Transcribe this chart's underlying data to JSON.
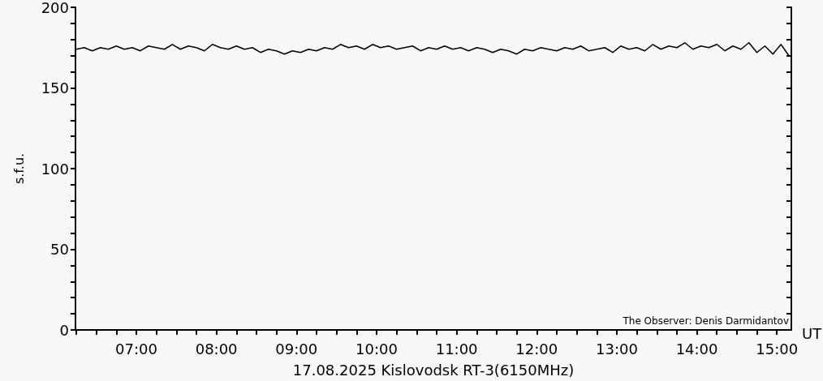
{
  "chart_data": {
    "type": "line",
    "xlabel": "17.08.2025 Kislovodsk RT-3(6150MHz)",
    "ylabel": "s.f.u.",
    "annotations": [
      "The Observer: Denis Darmidantov",
      "UT"
    ],
    "x": [
      6.25,
      6.35,
      6.45,
      6.55,
      6.65,
      6.75,
      6.85,
      6.95,
      7.05,
      7.15,
      7.25,
      7.35,
      7.45,
      7.55,
      7.65,
      7.75,
      7.85,
      7.95,
      8.05,
      8.15,
      8.25,
      8.35,
      8.45,
      8.55,
      8.65,
      8.75,
      8.85,
      8.95,
      9.05,
      9.15,
      9.25,
      9.35,
      9.45,
      9.55,
      9.65,
      9.75,
      9.85,
      9.95,
      10.05,
      10.15,
      10.25,
      10.35,
      10.45,
      10.55,
      10.65,
      10.75,
      10.85,
      10.95,
      11.05,
      11.15,
      11.25,
      11.35,
      11.45,
      11.55,
      11.65,
      11.75,
      11.85,
      11.95,
      12.05,
      12.15,
      12.25,
      12.35,
      12.45,
      12.55,
      12.65,
      12.75,
      12.85,
      12.95,
      13.05,
      13.15,
      13.25,
      13.35,
      13.45,
      13.55,
      13.65,
      13.75,
      13.85,
      13.95,
      14.05,
      14.15,
      14.25,
      14.35,
      14.45,
      14.55,
      14.65,
      14.75,
      14.85,
      14.95,
      15.05,
      15.15
    ],
    "series": [
      {
        "color": "#000000",
        "values": [
          174,
          175,
          173,
          175,
          174,
          176,
          174,
          175,
          173,
          176,
          175,
          174,
          177,
          174,
          176,
          175,
          173,
          177,
          175,
          174,
          176,
          174,
          175,
          172,
          174,
          173,
          171,
          173,
          172,
          174,
          173,
          175,
          174,
          177,
          175,
          176,
          174,
          177,
          175,
          176,
          174,
          175,
          176,
          173,
          175,
          174,
          176,
          174,
          175,
          173,
          175,
          174,
          172,
          174,
          173,
          171,
          174,
          173,
          175,
          174,
          173,
          175,
          174,
          176,
          173,
          174,
          175,
          172,
          176,
          174,
          175,
          173,
          177,
          174,
          176,
          175,
          178,
          174,
          176,
          175,
          177,
          173,
          176,
          174,
          178,
          172,
          176,
          171,
          177,
          170
        ]
      }
    ],
    "xlim": [
      6.24,
      15.18
    ],
    "xticks": [
      {
        "value": 6.25,
        "label": null
      },
      {
        "value": 6.5,
        "label": null
      },
      {
        "value": 6.75,
        "label": null
      },
      {
        "value": 7,
        "label": "07:00"
      },
      {
        "value": 7.25,
        "label": null
      },
      {
        "value": 7.5,
        "label": null
      },
      {
        "value": 7.75,
        "label": null
      },
      {
        "value": 8,
        "label": "08:00"
      },
      {
        "value": 8.25,
        "label": null
      },
      {
        "value": 8.5,
        "label": null
      },
      {
        "value": 8.75,
        "label": null
      },
      {
        "value": 9,
        "label": "09:00"
      },
      {
        "value": 9.25,
        "label": null
      },
      {
        "value": 9.5,
        "label": null
      },
      {
        "value": 9.75,
        "label": null
      },
      {
        "value": 10,
        "label": "10:00"
      },
      {
        "value": 10.25,
        "label": null
      },
      {
        "value": 10.5,
        "label": null
      },
      {
        "value": 10.75,
        "label": null
      },
      {
        "value": 11,
        "label": "11:00"
      },
      {
        "value": 11.25,
        "label": null
      },
      {
        "value": 11.5,
        "label": null
      },
      {
        "value": 11.75,
        "label": null
      },
      {
        "value": 12,
        "label": "12:00"
      },
      {
        "value": 12.25,
        "label": null
      },
      {
        "value": 12.5,
        "label": null
      },
      {
        "value": 12.75,
        "label": null
      },
      {
        "value": 13,
        "label": "13:00"
      },
      {
        "value": 13.25,
        "label": null
      },
      {
        "value": 13.5,
        "label": null
      },
      {
        "value": 13.75,
        "label": null
      },
      {
        "value": 14,
        "label": "14:00"
      },
      {
        "value": 14.25,
        "label": null
      },
      {
        "value": 14.5,
        "label": null
      },
      {
        "value": 14.75,
        "label": null
      },
      {
        "value": 15,
        "label": "15:00"
      }
    ],
    "ylim": [
      0,
      200
    ],
    "yticks": [
      0,
      {
        "value": 10,
        "label": null
      },
      {
        "value": 20,
        "label": null
      },
      {
        "value": 30,
        "label": null
      },
      {
        "value": 40,
        "label": null
      },
      50,
      {
        "value": 60,
        "label": null
      },
      {
        "value": 70,
        "label": null
      },
      {
        "value": 80,
        "label": null
      },
      {
        "value": 90,
        "label": null
      },
      100,
      {
        "value": 110,
        "label": null
      },
      {
        "value": 120,
        "label": null
      },
      {
        "value": 130,
        "label": null
      },
      {
        "value": 140,
        "label": null
      },
      150,
      {
        "value": 160,
        "label": null
      },
      {
        "value": 170,
        "label": null
      },
      {
        "value": 180,
        "label": null
      },
      {
        "value": 190,
        "label": null
      },
      200
    ],
    "grid": false,
    "marker": "none",
    "line_style": "solid"
  }
}
